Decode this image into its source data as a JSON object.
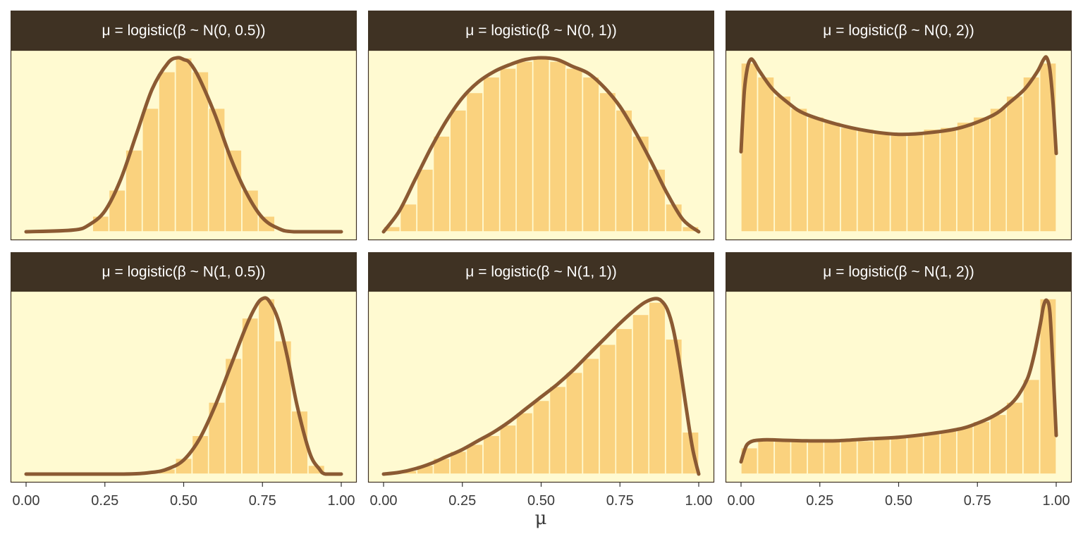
{
  "chart_data": {
    "type": "histogram-density-facets",
    "xlabel": "μ",
    "x_ticks": [
      "0.00",
      "0.25",
      "0.50",
      "0.75",
      "1.00"
    ],
    "xlim": [
      0,
      1
    ],
    "grid": false,
    "colors": {
      "panel_bg": "#fffad1",
      "strip_bg": "#3f3223",
      "strip_text": "#ffffff",
      "bar_fill": "#fad27e",
      "bar_edge": "#fffad1",
      "density_line": "#8b5a33",
      "panel_border": "#3f3223"
    },
    "bin_width": 0.05263,
    "panels": [
      {
        "title": "μ = logistic(β ~ N(0, 0.5))",
        "bins_x": [
          0.237,
          0.289,
          0.342,
          0.395,
          0.447,
          0.5,
          0.553,
          0.605,
          0.658,
          0.711,
          0.763
        ],
        "bins_h": [
          0.09,
          0.24,
          0.47,
          0.71,
          0.92,
          1.0,
          0.92,
          0.71,
          0.47,
          0.24,
          0.09
        ],
        "density_x": [
          0.0,
          0.15,
          0.2,
          0.25,
          0.3,
          0.35,
          0.4,
          0.45,
          0.48,
          0.5,
          0.52,
          0.55,
          0.6,
          0.65,
          0.7,
          0.75,
          0.8,
          0.85,
          1.0
        ],
        "density_y": [
          0.0,
          0.01,
          0.04,
          0.12,
          0.3,
          0.56,
          0.82,
          0.97,
          1.0,
          0.99,
          0.97,
          0.88,
          0.67,
          0.42,
          0.22,
          0.08,
          0.02,
          0.0,
          0.0
        ]
      },
      {
        "title": "μ = logistic(β ~ N(0, 1))",
        "bins_x": [
          0.026,
          0.079,
          0.132,
          0.184,
          0.237,
          0.289,
          0.342,
          0.395,
          0.447,
          0.5,
          0.553,
          0.605,
          0.658,
          0.711,
          0.763,
          0.816,
          0.868,
          0.921,
          0.974
        ],
        "bins_h": [
          0.03,
          0.16,
          0.36,
          0.55,
          0.7,
          0.8,
          0.89,
          0.94,
          0.98,
          1.0,
          0.98,
          0.94,
          0.89,
          0.8,
          0.7,
          0.55,
          0.36,
          0.16,
          0.03
        ],
        "density_x": [
          0.0,
          0.05,
          0.1,
          0.15,
          0.2,
          0.25,
          0.3,
          0.35,
          0.4,
          0.45,
          0.5,
          0.55,
          0.6,
          0.65,
          0.7,
          0.75,
          0.8,
          0.85,
          0.9,
          0.95,
          1.0
        ],
        "density_y": [
          0.0,
          0.12,
          0.3,
          0.48,
          0.64,
          0.77,
          0.86,
          0.92,
          0.96,
          0.99,
          1.0,
          0.99,
          0.95,
          0.91,
          0.83,
          0.72,
          0.57,
          0.4,
          0.22,
          0.07,
          0.0
        ]
      },
      {
        "title": "μ = logistic(β ~ N(0, 2))",
        "bins_x": [
          0.026,
          0.079,
          0.132,
          0.184,
          0.237,
          0.289,
          0.342,
          0.395,
          0.447,
          0.5,
          0.553,
          0.605,
          0.658,
          0.711,
          0.763,
          0.816,
          0.868,
          0.921,
          0.974
        ],
        "bins_h": [
          0.97,
          0.89,
          0.78,
          0.71,
          0.66,
          0.63,
          0.6,
          0.59,
          0.57,
          0.56,
          0.57,
          0.59,
          0.6,
          0.63,
          0.66,
          0.71,
          0.78,
          0.89,
          0.97
        ],
        "density_x": [
          0.0,
          0.01,
          0.02,
          0.03,
          0.04,
          0.06,
          0.1,
          0.15,
          0.2,
          0.3,
          0.4,
          0.5,
          0.6,
          0.7,
          0.8,
          0.85,
          0.9,
          0.94,
          0.96,
          0.97,
          0.98,
          0.99,
          1.0
        ],
        "density_y": [
          0.46,
          0.8,
          0.94,
          0.99,
          0.98,
          0.92,
          0.82,
          0.74,
          0.68,
          0.62,
          0.58,
          0.56,
          0.57,
          0.6,
          0.67,
          0.74,
          0.82,
          0.92,
          0.99,
          1.0,
          0.93,
          0.74,
          0.45
        ]
      },
      {
        "title": "μ = logistic(β ~ N(1, 0.5))",
        "bins_x": [
          0.447,
          0.5,
          0.553,
          0.605,
          0.658,
          0.711,
          0.763,
          0.816,
          0.868,
          0.921
        ],
        "bins_h": [
          0.03,
          0.09,
          0.22,
          0.41,
          0.66,
          0.89,
          1.0,
          0.76,
          0.36,
          0.05
        ],
        "density_x": [
          0.0,
          0.3,
          0.4,
          0.45,
          0.5,
          0.55,
          0.6,
          0.65,
          0.7,
          0.73,
          0.75,
          0.77,
          0.8,
          0.83,
          0.86,
          0.9,
          0.93,
          0.95,
          1.0
        ],
        "density_y": [
          0.0,
          0.0,
          0.01,
          0.03,
          0.08,
          0.2,
          0.39,
          0.62,
          0.85,
          0.96,
          1.0,
          0.99,
          0.88,
          0.66,
          0.39,
          0.12,
          0.03,
          0.0,
          0.0
        ]
      },
      {
        "title": "μ = logistic(β ~ N(1, 1))",
        "bins_x": [
          0.079,
          0.132,
          0.184,
          0.237,
          0.289,
          0.342,
          0.395,
          0.447,
          0.5,
          0.553,
          0.605,
          0.658,
          0.711,
          0.763,
          0.816,
          0.868,
          0.921,
          0.974
        ],
        "bins_h": [
          0.02,
          0.05,
          0.09,
          0.13,
          0.17,
          0.22,
          0.28,
          0.35,
          0.42,
          0.5,
          0.58,
          0.66,
          0.74,
          0.83,
          0.91,
          0.98,
          0.77,
          0.24
        ],
        "density_x": [
          0.0,
          0.05,
          0.1,
          0.15,
          0.2,
          0.25,
          0.3,
          0.35,
          0.4,
          0.45,
          0.5,
          0.55,
          0.6,
          0.65,
          0.7,
          0.75,
          0.8,
          0.83,
          0.86,
          0.88,
          0.9,
          0.92,
          0.94,
          0.96,
          0.98,
          1.0
        ],
        "density_y": [
          0.0,
          0.01,
          0.03,
          0.06,
          0.1,
          0.14,
          0.19,
          0.24,
          0.3,
          0.37,
          0.44,
          0.51,
          0.59,
          0.68,
          0.77,
          0.86,
          0.94,
          0.98,
          1.0,
          0.99,
          0.94,
          0.82,
          0.62,
          0.38,
          0.15,
          0.0
        ]
      },
      {
        "title": "μ = logistic(β ~ N(1, 2))",
        "bins_x": [
          0.026,
          0.079,
          0.132,
          0.184,
          0.237,
          0.289,
          0.342,
          0.395,
          0.447,
          0.5,
          0.553,
          0.605,
          0.658,
          0.711,
          0.763,
          0.816,
          0.868,
          0.921,
          0.974
        ],
        "bins_h": [
          0.15,
          0.19,
          0.19,
          0.19,
          0.19,
          0.19,
          0.19,
          0.19,
          0.2,
          0.21,
          0.22,
          0.23,
          0.25,
          0.27,
          0.3,
          0.34,
          0.41,
          0.54,
          1.0
        ],
        "density_x": [
          0.0,
          0.01,
          0.02,
          0.04,
          0.07,
          0.1,
          0.2,
          0.3,
          0.4,
          0.5,
          0.6,
          0.7,
          0.75,
          0.8,
          0.85,
          0.88,
          0.91,
          0.93,
          0.95,
          0.96,
          0.97,
          0.98,
          0.99,
          1.0
        ],
        "density_y": [
          0.07,
          0.13,
          0.17,
          0.19,
          0.195,
          0.195,
          0.19,
          0.19,
          0.2,
          0.21,
          0.23,
          0.26,
          0.29,
          0.33,
          0.39,
          0.45,
          0.55,
          0.68,
          0.86,
          0.96,
          0.99,
          0.92,
          0.6,
          0.22
        ]
      }
    ]
  }
}
